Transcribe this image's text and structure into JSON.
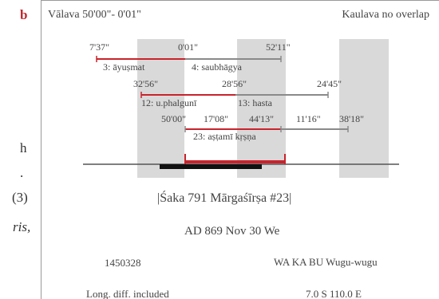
{
  "panel_letter": "b",
  "left_fragments": {
    "f1": "h",
    "f2": ".",
    "f3": "(3)",
    "f4": "ris,"
  },
  "header": {
    "valava": "Vālava 50'00\"- 0'01\"",
    "kaulava": "Kaulava no overlap"
  },
  "tithi_rows": [
    {
      "times": [
        "7'37\"",
        "0'01\"",
        "52'11\""
      ],
      "labels": [
        "3: āyuṣmat",
        "4: saubhāgya"
      ]
    },
    {
      "times": [
        "32'56\"",
        "28'56\"",
        "24'45\""
      ],
      "labels": [
        "12: u.phalgunī",
        "13: hasta"
      ]
    },
    {
      "times": [
        "50'00\"",
        "17'08\"",
        "44'13\"",
        "11'16\"",
        "38'18\""
      ],
      "labels": [
        "23: aṣṭamī kṛṣṇa"
      ]
    }
  ],
  "info": {
    "saka": "|Śaka 791 Mārgaśīrṣa #23|",
    "ad": "AD 869 Nov 30 We",
    "jd": "1450328",
    "place": "WA KA BU Wugu-wugu",
    "longdiff": "Long. diff. included",
    "coords": "7.0 S 110.0 E"
  },
  "colors": {
    "red": "#c8232c",
    "grey_band": "#d9d9d9",
    "grey_line": "#8a8a8a",
    "black": "#111111"
  }
}
